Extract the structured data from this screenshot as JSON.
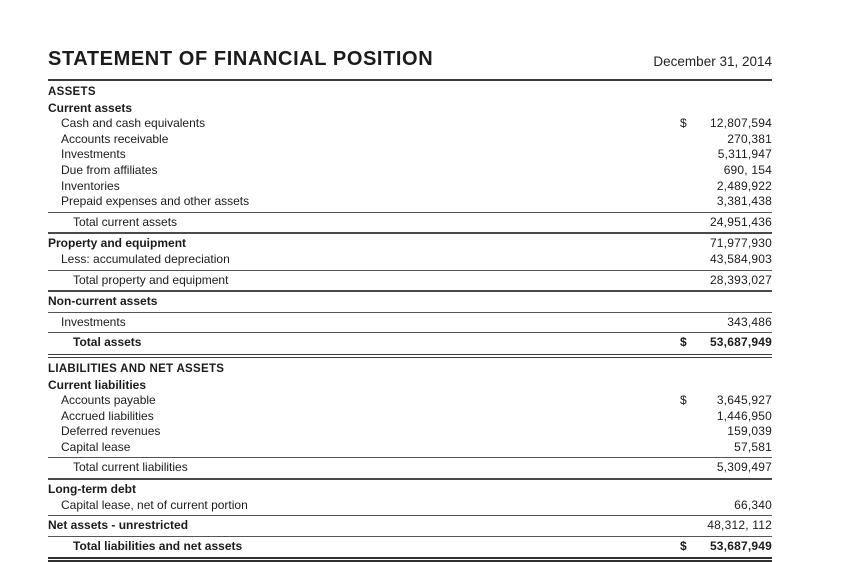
{
  "header": {
    "title": "STATEMENT OF FINANCIAL POSITION",
    "date": "December 31, 2014"
  },
  "colors": {
    "text": "#1b1b1b",
    "rule": "#4f4f4f",
    "background": "#ffffff"
  },
  "statement": {
    "rows": [
      {
        "label": "ASSETS",
        "dollar": "",
        "value": ""
      },
      {
        "label": "Current assets",
        "dollar": "",
        "value": ""
      },
      {
        "label": "Cash and cash equivalents",
        "dollar": "$",
        "value": "12,807,594"
      },
      {
        "label": "Accounts receivable",
        "dollar": "",
        "value": "270,381"
      },
      {
        "label": "Investments",
        "dollar": "",
        "value": "5,311,947"
      },
      {
        "label": "Due from affiliates",
        "dollar": "",
        "value": "690, 154"
      },
      {
        "label": "Inventories",
        "dollar": "",
        "value": "2,489,922"
      },
      {
        "label": "Prepaid expenses and other assets",
        "dollar": "",
        "value": "3,381,438"
      },
      {
        "label": "Total current assets",
        "dollar": "",
        "value": "24,951,436"
      },
      {
        "label": "Property and equipment",
        "dollar": "",
        "value": "71,977,930"
      },
      {
        "label": "Less: accumulated depreciation",
        "dollar": "",
        "value": "43,584,903"
      },
      {
        "label": "Total property and equipment",
        "dollar": "",
        "value": "28,393,027"
      },
      {
        "label": "Non-current assets",
        "dollar": "",
        "value": ""
      },
      {
        "label": "Investments",
        "dollar": "",
        "value": "343,486"
      },
      {
        "label": "Total assets",
        "dollar": "$",
        "value": "53,687,949"
      },
      {
        "label": "LIABILITIES AND NET ASSETS",
        "dollar": "",
        "value": ""
      },
      {
        "label": "Current liabilities",
        "dollar": "",
        "value": ""
      },
      {
        "label": "Accounts payable",
        "dollar": "$",
        "value": "3,645,927"
      },
      {
        "label": "Accrued liabilities",
        "dollar": "",
        "value": "1,446,950"
      },
      {
        "label": "Deferred revenues",
        "dollar": "",
        "value": "159,039"
      },
      {
        "label": "Capital lease",
        "dollar": "",
        "value": "57,581"
      },
      {
        "label": "Total current liabilities",
        "dollar": "",
        "value": "5,309,497"
      },
      {
        "label": "Long-term debt",
        "dollar": "",
        "value": ""
      },
      {
        "label": "Capital lease, net of current portion",
        "dollar": "",
        "value": "66,340"
      },
      {
        "label": "Net assets - unrestricted",
        "dollar": "",
        "value": "48,312, 112"
      },
      {
        "label": "Total liabilities and net assets",
        "dollar": "$",
        "value": "53,687,949"
      }
    ]
  }
}
